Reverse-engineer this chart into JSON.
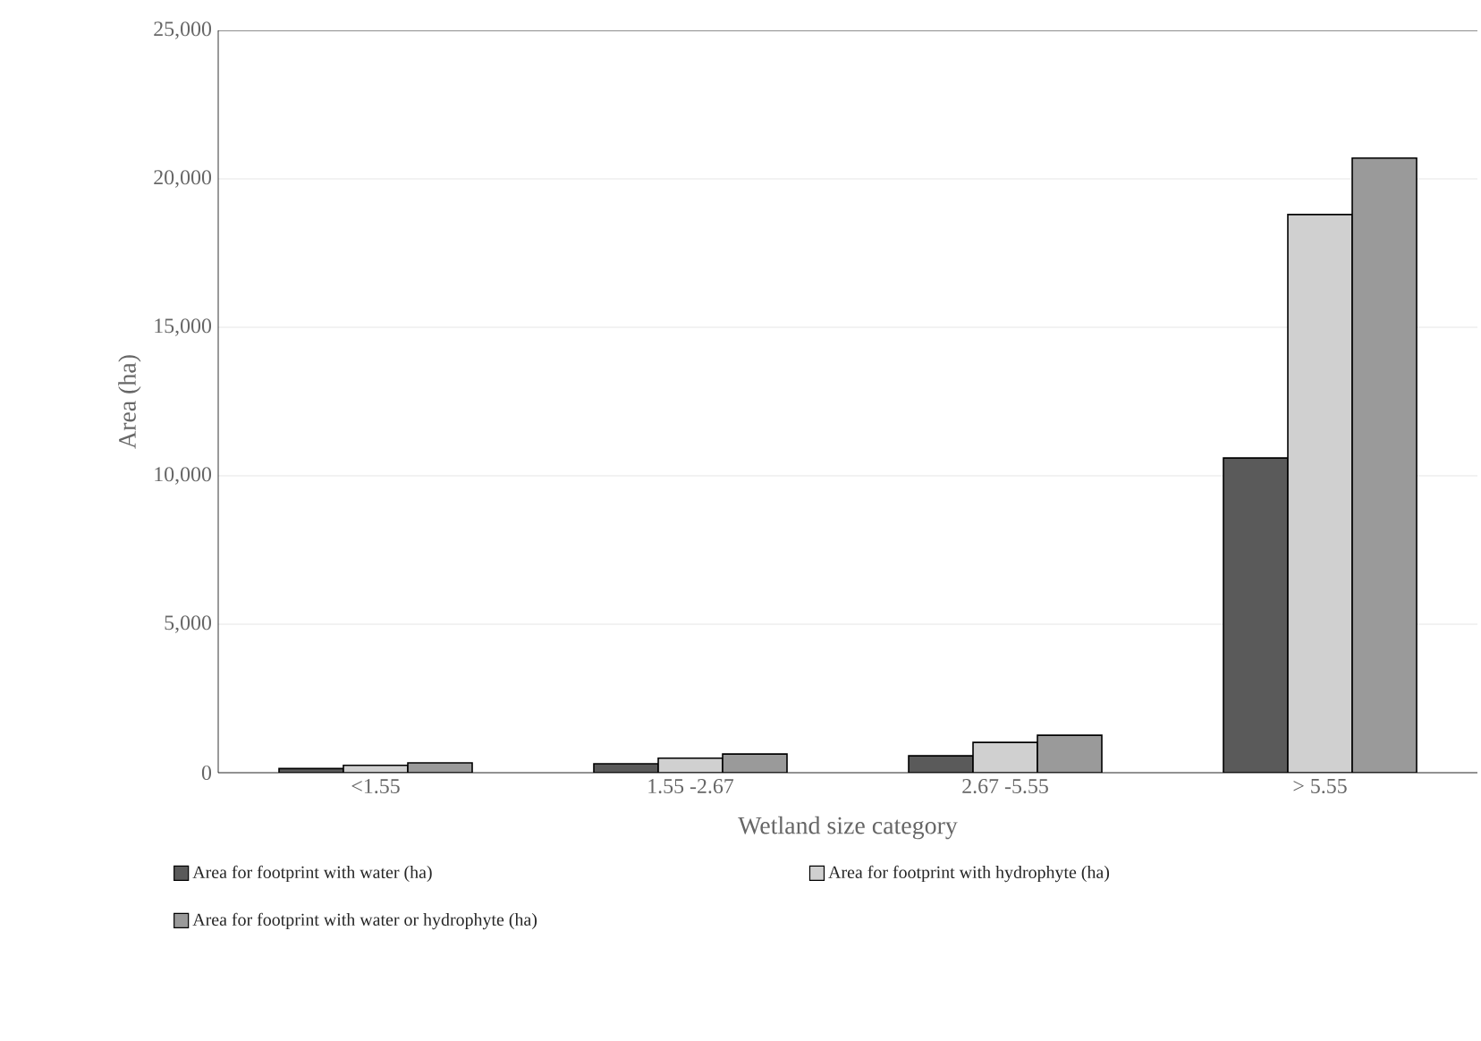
{
  "chart_data": {
    "type": "bar",
    "xlabel": "Wetland size category",
    "ylabel": "Area (ha)",
    "categories": [
      "<1.55",
      "1.55 -2.67",
      "2.67 -5.55",
      "> 5.55"
    ],
    "series": [
      {
        "name": "Area for footprint with water (ha)",
        "color": "#5a5a5a",
        "values": [
          140,
          300,
          570,
          10600
        ]
      },
      {
        "name": "Area for footprint with hydrophyte (ha)",
        "color": "#d0d0d0",
        "values": [
          250,
          490,
          1020,
          18800
        ]
      },
      {
        "name": "Area for footprint with water or hydrophyte (ha)",
        "color": "#9a9a9a",
        "values": [
          330,
          630,
          1260,
          20700
        ]
      }
    ],
    "ylim": [
      0,
      25000
    ],
    "yticks": [
      {
        "value": 0,
        "label": "0"
      },
      {
        "value": 5000,
        "label": "5,000"
      },
      {
        "value": 10000,
        "label": "10,000"
      },
      {
        "value": 15000,
        "label": "15,000"
      },
      {
        "value": 20000,
        "label": "20,000"
      },
      {
        "value": 25000,
        "label": "25,000"
      }
    ],
    "grid": "y",
    "legend": "bottom"
  }
}
